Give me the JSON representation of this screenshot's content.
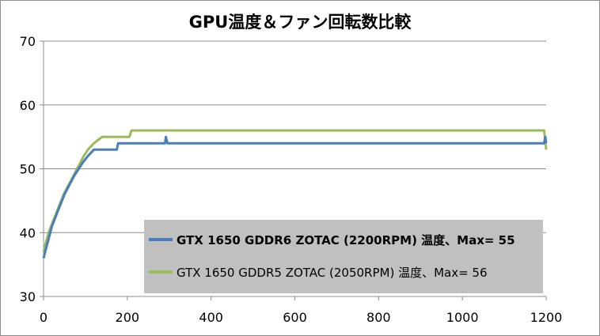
{
  "chart_data": {
    "type": "line",
    "title": "GPU温度＆ファン回転数比較",
    "xlabel": "",
    "ylabel": "",
    "xlim": [
      0,
      1200
    ],
    "ylim": [
      30,
      70
    ],
    "xticks": [
      "0",
      "200",
      "400",
      "600",
      "800",
      "1000",
      "1200"
    ],
    "yticks": [
      "30",
      "40",
      "50",
      "60",
      "70"
    ],
    "grid": "horizontal",
    "legend_position": "lower-right",
    "series": [
      {
        "name": "GTX 1650 GDDR6 ZOTAC (2200RPM) 温度、Max= 55",
        "color": "#4a7ebb",
        "points": [
          [
            0,
            36
          ],
          [
            4,
            37
          ],
          [
            8,
            38
          ],
          [
            12,
            39
          ],
          [
            16,
            40
          ],
          [
            20,
            41
          ],
          [
            26,
            42
          ],
          [
            32,
            43
          ],
          [
            38,
            44
          ],
          [
            44,
            45
          ],
          [
            50,
            46
          ],
          [
            58,
            47
          ],
          [
            66,
            48
          ],
          [
            74,
            49
          ],
          [
            84,
            50
          ],
          [
            94,
            51
          ],
          [
            106,
            52
          ],
          [
            120,
            53
          ],
          [
            150,
            53
          ],
          [
            175,
            53
          ],
          [
            178,
            54
          ],
          [
            290,
            54
          ],
          [
            292,
            55
          ],
          [
            296,
            54
          ],
          [
            1195,
            54
          ],
          [
            1198,
            55
          ],
          [
            1200,
            54
          ]
        ]
      },
      {
        "name": "GTX 1650 GDDR5 ZOTAC (2050RPM) 温度、Max= 56",
        "color": "#9bbb59",
        "points": [
          [
            0,
            37
          ],
          [
            4,
            38
          ],
          [
            8,
            39
          ],
          [
            12,
            40
          ],
          [
            18,
            41
          ],
          [
            24,
            42
          ],
          [
            30,
            43
          ],
          [
            36,
            44
          ],
          [
            42,
            45
          ],
          [
            48,
            46
          ],
          [
            56,
            47
          ],
          [
            64,
            48
          ],
          [
            72,
            49
          ],
          [
            80,
            50
          ],
          [
            88,
            51
          ],
          [
            96,
            52
          ],
          [
            106,
            53
          ],
          [
            120,
            54
          ],
          [
            140,
            55
          ],
          [
            205,
            55
          ],
          [
            210,
            56
          ],
          [
            1195,
            56
          ],
          [
            1200,
            53
          ]
        ]
      }
    ]
  }
}
